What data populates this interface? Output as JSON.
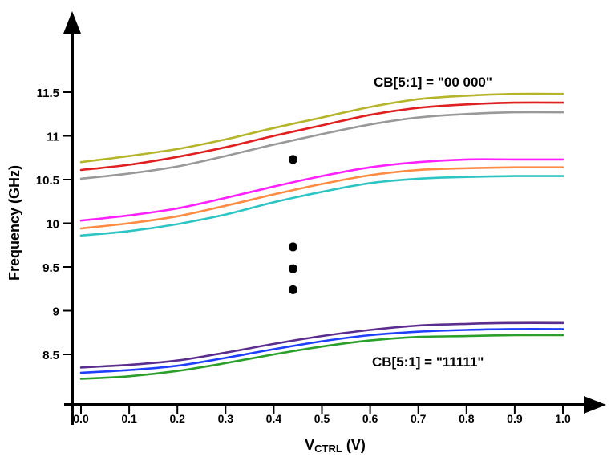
{
  "chart_data": {
    "type": "line",
    "xlabel": "V",
    "xlabel_subscript": "CTRL",
    "xlabel_suffix": " (V)",
    "ylabel": "Frequency (GHz)",
    "xlim": [
      0.0,
      1.0
    ],
    "ylim": [
      8.0,
      12.0
    ],
    "x_ticks": [
      0.0,
      0.1,
      0.2,
      0.3,
      0.4,
      0.5,
      0.6,
      0.7,
      0.8,
      0.9,
      1.0
    ],
    "x_tick_labels": [
      "0.0",
      "0.1",
      "0.2",
      "0.3",
      "0.4",
      "0.5",
      "0.6",
      "0.7",
      "0.8",
      "0.9",
      "1.0"
    ],
    "y_ticks": [
      8.5,
      9,
      9.5,
      10,
      10.5,
      11,
      11.5
    ],
    "y_tick_labels": [
      "8.5",
      "9",
      "9.5",
      "10",
      "10.5",
      "11",
      "11.5"
    ],
    "grid": false,
    "legend": "none",
    "x": [
      0.0,
      0.1,
      0.2,
      0.3,
      0.4,
      0.5,
      0.6,
      0.7,
      0.8,
      0.9,
      1.0
    ],
    "series": [
      {
        "color": "#b5b52a",
        "values": [
          10.7,
          10.77,
          10.85,
          10.96,
          11.09,
          11.21,
          11.33,
          11.42,
          11.46,
          11.48,
          11.48
        ]
      },
      {
        "color": "#e02020",
        "values": [
          10.61,
          10.67,
          10.76,
          10.87,
          11.0,
          11.12,
          11.24,
          11.32,
          11.36,
          11.38,
          11.38
        ]
      },
      {
        "color": "#999999",
        "values": [
          10.51,
          10.57,
          10.65,
          10.77,
          10.9,
          11.02,
          11.13,
          11.21,
          11.25,
          11.27,
          11.27
        ]
      },
      {
        "color": "#ff20ff",
        "values": [
          10.03,
          10.09,
          10.17,
          10.29,
          10.42,
          10.54,
          10.64,
          10.7,
          10.73,
          10.73,
          10.73
        ]
      },
      {
        "color": "#ff8c42",
        "values": [
          9.94,
          10.0,
          10.08,
          10.2,
          10.33,
          10.45,
          10.55,
          10.61,
          10.63,
          10.64,
          10.64
        ]
      },
      {
        "color": "#2ec4c4",
        "values": [
          9.86,
          9.91,
          9.99,
          10.1,
          10.24,
          10.36,
          10.46,
          10.51,
          10.53,
          10.54,
          10.54
        ]
      },
      {
        "color": "#5b2d8e",
        "values": [
          8.35,
          8.38,
          8.43,
          8.52,
          8.62,
          8.71,
          8.78,
          8.83,
          8.85,
          8.86,
          8.86
        ]
      },
      {
        "color": "#1f3fff",
        "values": [
          8.29,
          8.32,
          8.37,
          8.46,
          8.56,
          8.65,
          8.72,
          8.76,
          8.78,
          8.79,
          8.79
        ]
      },
      {
        "color": "#2aa02a",
        "values": [
          8.22,
          8.25,
          8.31,
          8.4,
          8.5,
          8.59,
          8.66,
          8.7,
          8.71,
          8.72,
          8.72
        ]
      }
    ],
    "dots": [
      {
        "x": 0.44,
        "y": 10.73
      },
      {
        "x": 0.44,
        "y": 9.73
      },
      {
        "x": 0.44,
        "y": 9.48
      },
      {
        "x": 0.44,
        "y": 9.24
      }
    ],
    "annotations": [
      {
        "id": "top",
        "text": "CB[5:1] = \"00 000\""
      },
      {
        "id": "bottom",
        "text": "CB[5:1] = \"11111\""
      }
    ]
  }
}
